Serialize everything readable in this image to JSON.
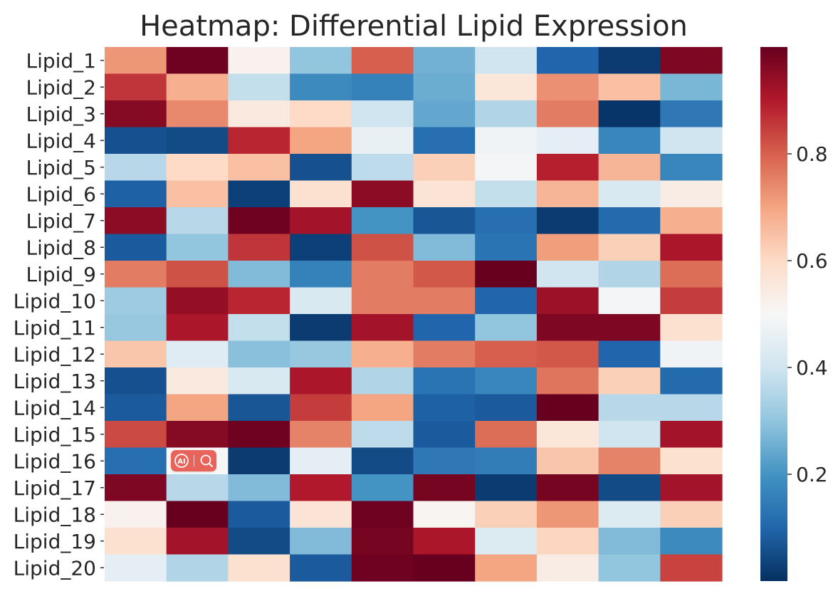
{
  "chart_data": {
    "type": "heatmap",
    "title": "Heatmap: Differential Lipid Expression",
    "xlabel": "",
    "ylabel": "",
    "rows": [
      "Lipid_1",
      "Lipid_2",
      "Lipid_3",
      "Lipid_4",
      "Lipid_5",
      "Lipid_6",
      "Lipid_7",
      "Lipid_8",
      "Lipid_9",
      "Lipid_10",
      "Lipid_11",
      "Lipid_12",
      "Lipid_13",
      "Lipid_14",
      "Lipid_15",
      "Lipid_16",
      "Lipid_17",
      "Lipid_18",
      "Lipid_19",
      "Lipid_20"
    ],
    "values": [
      [
        0.72,
        0.99,
        0.52,
        0.3,
        0.8,
        0.26,
        0.4,
        0.1,
        0.02,
        0.97
      ],
      [
        0.86,
        0.68,
        0.38,
        0.18,
        0.16,
        0.25,
        0.56,
        0.73,
        0.65,
        0.27
      ],
      [
        0.96,
        0.74,
        0.55,
        0.6,
        0.4,
        0.24,
        0.35,
        0.76,
        0.01,
        0.14
      ],
      [
        0.06,
        0.05,
        0.88,
        0.7,
        0.46,
        0.12,
        0.48,
        0.45,
        0.17,
        0.4
      ],
      [
        0.36,
        0.6,
        0.65,
        0.06,
        0.37,
        0.62,
        0.49,
        0.89,
        0.67,
        0.17
      ],
      [
        0.09,
        0.65,
        0.03,
        0.58,
        0.95,
        0.57,
        0.38,
        0.67,
        0.42,
        0.54
      ],
      [
        0.95,
        0.36,
        0.99,
        0.92,
        0.2,
        0.07,
        0.12,
        0.02,
        0.11,
        0.68
      ],
      [
        0.08,
        0.3,
        0.86,
        0.03,
        0.82,
        0.28,
        0.13,
        0.71,
        0.62,
        0.91
      ],
      [
        0.76,
        0.82,
        0.28,
        0.16,
        0.76,
        0.81,
        1.0,
        0.4,
        0.35,
        0.78
      ],
      [
        0.32,
        0.94,
        0.88,
        0.42,
        0.76,
        0.76,
        0.1,
        0.93,
        0.49,
        0.85
      ],
      [
        0.31,
        0.91,
        0.38,
        0.02,
        0.92,
        0.1,
        0.3,
        0.97,
        0.97,
        0.58
      ],
      [
        0.64,
        0.44,
        0.29,
        0.31,
        0.68,
        0.76,
        0.8,
        0.81,
        0.1,
        0.48
      ],
      [
        0.06,
        0.55,
        0.42,
        0.91,
        0.35,
        0.13,
        0.17,
        0.77,
        0.62,
        0.11
      ],
      [
        0.08,
        0.7,
        0.07,
        0.85,
        0.7,
        0.09,
        0.08,
        1.0,
        0.36,
        0.36
      ],
      [
        0.83,
        0.96,
        0.99,
        0.75,
        0.37,
        0.08,
        0.78,
        0.56,
        0.4,
        0.92
      ],
      [
        0.12,
        0.5,
        0.02,
        0.45,
        0.05,
        0.14,
        0.15,
        0.64,
        0.75,
        0.58
      ],
      [
        0.97,
        0.36,
        0.28,
        0.9,
        0.2,
        0.98,
        0.02,
        0.98,
        0.05,
        0.92
      ],
      [
        0.52,
        1.0,
        0.08,
        0.57,
        0.99,
        0.51,
        0.62,
        0.72,
        0.43,
        0.62
      ],
      [
        0.58,
        0.92,
        0.05,
        0.28,
        0.98,
        0.91,
        0.43,
        0.61,
        0.28,
        0.18
      ],
      [
        0.45,
        0.35,
        0.58,
        0.08,
        0.99,
        1.0,
        0.7,
        0.54,
        0.3,
        0.84
      ]
    ],
    "colorbar": {
      "ticks": [
        0.2,
        0.4,
        0.6,
        0.8
      ],
      "tick_labels": [
        "0.2",
        "0.4",
        "0.6",
        "0.8"
      ],
      "range": [
        0.0,
        1.0
      ]
    },
    "colormap": "RdBu_r",
    "colors": {
      "low": "#053061",
      "mid": "#f7f7f7",
      "high": "#67001f"
    }
  },
  "overlay_toolbar": {
    "ai_icon": "ai-icon",
    "search_icon": "search-icon",
    "ai_label": "AI"
  }
}
